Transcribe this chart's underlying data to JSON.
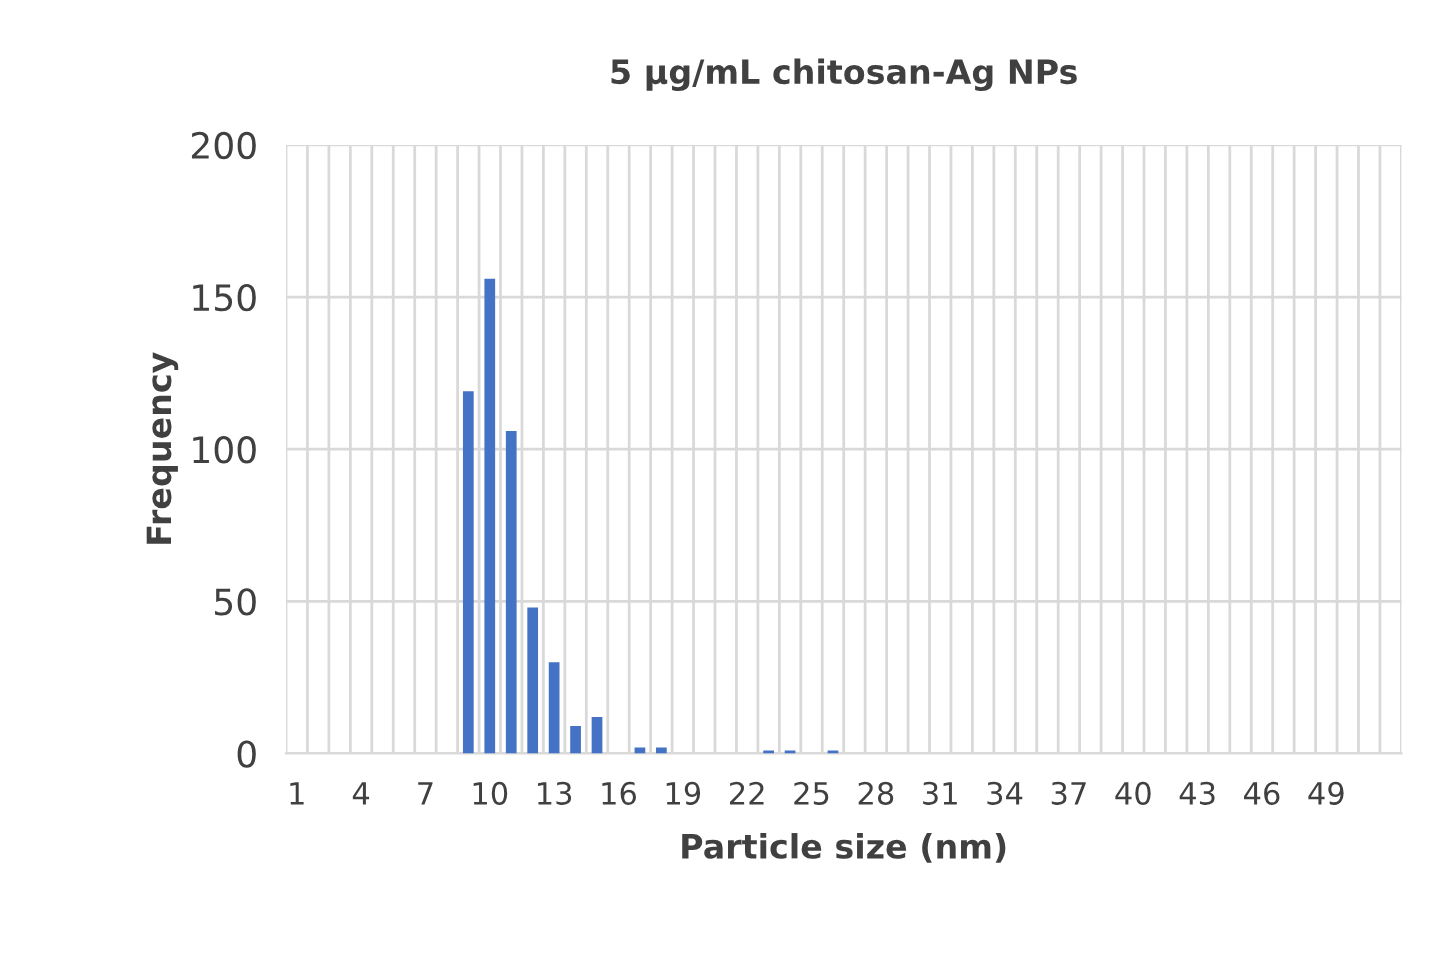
{
  "chart_data": {
    "type": "bar",
    "title": "5 µg/mL chitosan-Ag NPs",
    "xlabel": "Particle size (nm)",
    "ylabel": "Frequency",
    "categories": [
      "1",
      null,
      null,
      "4",
      null,
      null,
      "7",
      null,
      null,
      "10",
      null,
      null,
      "13",
      null,
      null,
      "16",
      null,
      null,
      "19",
      null,
      null,
      "22",
      null,
      null,
      "25",
      null,
      null,
      "28",
      null,
      null,
      "31",
      null,
      null,
      "34",
      null,
      null,
      "37",
      null,
      null,
      "40",
      null,
      null,
      "43",
      null,
      null,
      "46",
      null,
      null,
      "49",
      null,
      null,
      null
    ],
    "values": [
      0,
      0,
      0,
      0,
      0,
      0,
      0,
      0,
      119,
      156,
      106,
      48,
      30,
      9,
      12,
      0,
      2,
      2,
      0,
      0,
      0,
      0,
      1,
      1,
      0,
      1,
      0,
      0,
      0,
      0,
      0,
      0,
      0,
      0,
      0,
      0,
      0,
      0,
      0,
      0,
      0,
      0,
      0,
      0,
      0,
      0,
      0,
      0,
      0,
      0,
      0,
      0
    ],
    "color": "#4472c4",
    "ylim": [
      0,
      200
    ],
    "yticks": [
      0,
      50,
      100,
      150,
      200
    ],
    "grid": true
  }
}
